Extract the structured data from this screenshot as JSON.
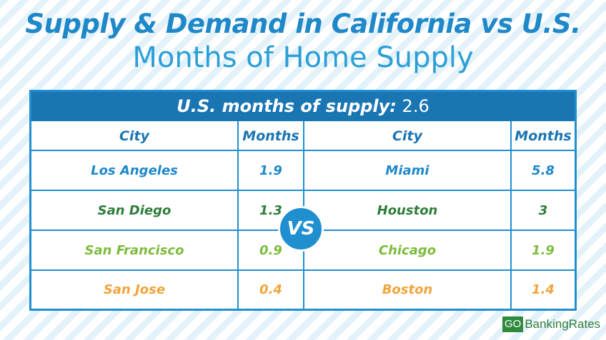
{
  "header": {
    "title": "Supply & Demand in California vs U.S.",
    "subtitle": "Months of Home Supply"
  },
  "table": {
    "banner_label": "U.S. months of supply:",
    "banner_value": "2.6",
    "columns": {
      "left_city": "City",
      "left_months": "Months",
      "right_city": "City",
      "right_months": "Months"
    },
    "rows": [
      {
        "left_city": "Los Angeles",
        "left_months": "1.9",
        "right_city": "Miami",
        "right_months": "5.8",
        "left_color": "#1e88c9",
        "right_color": "#1e88c9"
      },
      {
        "left_city": "San Diego",
        "left_months": "1.3",
        "right_city": "Houston",
        "right_months": "3",
        "left_color": "#2e7d3a",
        "right_color": "#2e7d3a"
      },
      {
        "left_city": "San Francisco",
        "left_months": "0.9",
        "right_city": "Chicago",
        "right_months": "1.9",
        "left_color": "#7dbb3c",
        "right_color": "#7dbb3c"
      },
      {
        "left_city": "San Jose",
        "left_months": "0.4",
        "right_city": "Boston",
        "right_months": "1.4",
        "left_color": "#f2a33a",
        "right_color": "#f2a33a"
      }
    ],
    "vs_label": "VS"
  },
  "footer": {
    "logo_go": "GO",
    "logo_text": "BankingRates"
  }
}
